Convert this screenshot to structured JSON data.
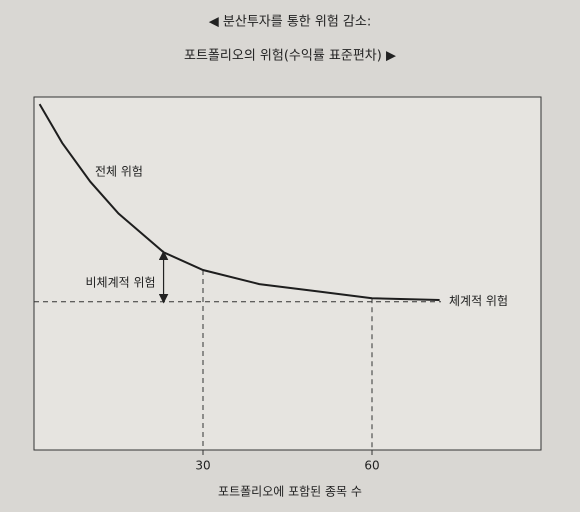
{
  "chart_data": {
    "type": "line",
    "title": "◀ 분산투자를 통한 위험 감소:",
    "subtitle": "포트폴리오의 위험(수익률 표준편차) ▶",
    "x_label": "포트폴리오에 포함된 종목 수",
    "x": [
      1,
      5,
      10,
      15,
      23,
      30,
      40,
      50,
      60,
      72
    ],
    "values": [
      98,
      87,
      76,
      67,
      56,
      51,
      47,
      45,
      43,
      42.5
    ],
    "color": "#1e1e1e",
    "systematic_risk": 42,
    "annotations": [
      "전체 위험",
      "비체계적 위험",
      "체계적 위험"
    ],
    "xlim": [
      0,
      90
    ],
    "ylim": [
      0,
      100
    ],
    "xticks": [
      30,
      60
    ]
  }
}
